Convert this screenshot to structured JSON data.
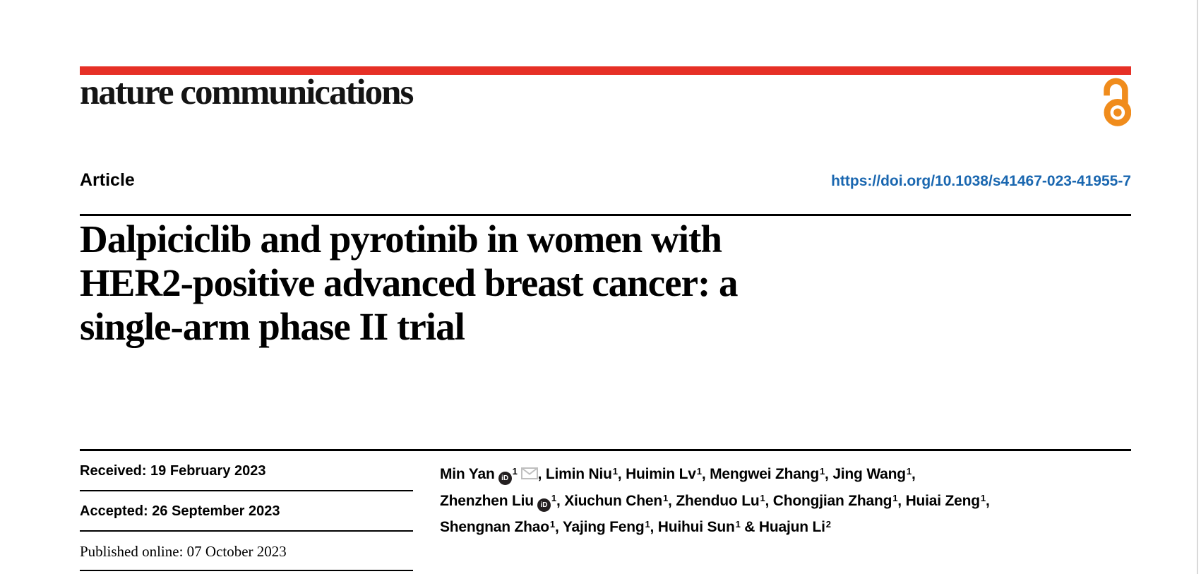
{
  "brand": {
    "journal_name": "nature communications"
  },
  "header": {
    "article_type": "Article",
    "doi": "https://doi.org/10.1038/s41467-023-41955-7"
  },
  "title_lines": [
    "Dalpiciclib and pyrotinib in women with",
    "HER2-positive advanced breast cancer: a",
    "single-arm phase II trial"
  ],
  "dates": [
    {
      "text": "Received: 19 February 2023"
    },
    {
      "text": "Accepted: 26 September 2023"
    },
    {
      "text": "Published online: 07 October 2023"
    }
  ],
  "authors": {
    "separator": ", ",
    "last_separator": " & ",
    "orcid_icon_label": "iD",
    "list": [
      {
        "name": "Min Yan",
        "sup": "1",
        "orcid": true,
        "email": true
      },
      {
        "name": "Limin Niu",
        "sup": "1"
      },
      {
        "name": "Huimin Lv",
        "sup": "1"
      },
      {
        "name": "Mengwei Zhang",
        "sup": "1"
      },
      {
        "name": "Jing Wang",
        "sup": "1",
        "break_after": true
      },
      {
        "name": "Zhenzhen Liu",
        "sup": "1",
        "orcid": true
      },
      {
        "name": "Xiuchun Chen",
        "sup": "1"
      },
      {
        "name": "Zhenduo Lu",
        "sup": "1"
      },
      {
        "name": "Chongjian Zhang",
        "sup": "1"
      },
      {
        "name": "Huiai Zeng",
        "sup": "1",
        "break_after": true
      },
      {
        "name": "Shengnan Zhao",
        "sup": "1"
      },
      {
        "name": "Yajing Feng",
        "sup": "1"
      },
      {
        "name": "Huihui Sun",
        "sup": "1"
      },
      {
        "name": "Huajun Li",
        "sup": "2"
      }
    ]
  },
  "colors": {
    "brand_red": "#e63026",
    "link_blue": "#1a67b0",
    "open_access_orange": "#f08c1c",
    "orcid_black": "#231f20",
    "envelope_gray": "#bfbfbf",
    "rule_black": "#000000",
    "page_edge_gray": "#d9d9d9",
    "text_black": "#000000"
  }
}
